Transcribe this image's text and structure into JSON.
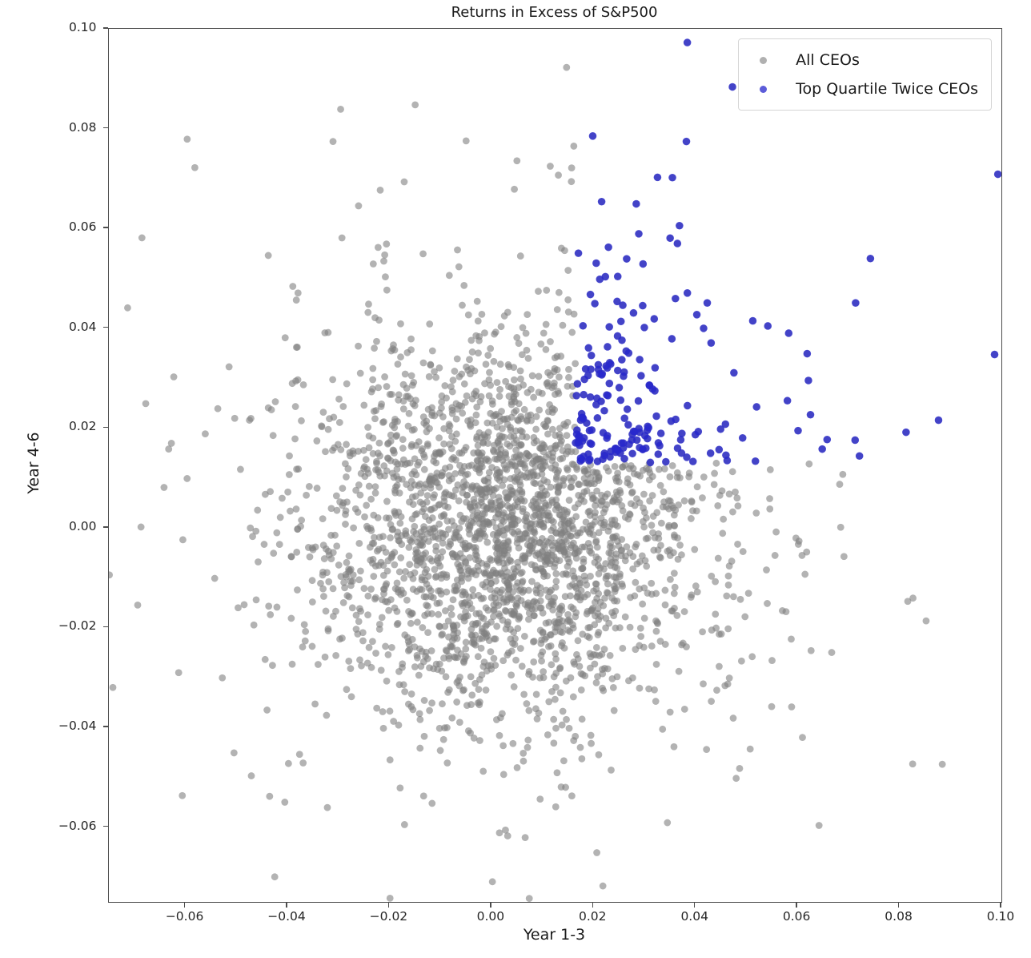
{
  "chart_data": {
    "type": "scatter",
    "title": "Returns in Excess of S&P500",
    "xlabel": "Year 1-3",
    "ylabel": "Year 4-6",
    "xlim": [
      -0.075,
      0.1
    ],
    "ylim": [
      -0.075,
      0.1
    ],
    "grid": false,
    "legend_position": "upper right",
    "xticks": {
      "values": [
        -0.06,
        -0.04,
        -0.02,
        0.0,
        0.02,
        0.04,
        0.06,
        0.08,
        0.1
      ],
      "labels": [
        "−0.06",
        "−0.04",
        "−0.02",
        "0.00",
        "0.02",
        "0.04",
        "0.06",
        "0.08",
        "0.10"
      ]
    },
    "yticks": {
      "values": [
        0.1,
        0.08,
        0.06,
        0.04,
        0.02,
        0.0,
        -0.02,
        -0.04,
        -0.06
      ],
      "labels": [
        "0.10",
        "0.08",
        "0.06",
        "0.04",
        "0.02",
        "0.00",
        "−0.02",
        "−0.04",
        "−0.06"
      ]
    },
    "series": [
      {
        "name": "All CEOs",
        "marker": "circle",
        "color": "#808080",
        "opacity": 0.6,
        "marker_radius_px": 4.4,
        "legend_marker_color": "#b0b0b0",
        "approx_count": 2800,
        "x_range_observed": [
          -0.074,
          0.096
        ],
        "y_range_observed": [
          -0.071,
          0.093
        ],
        "distribution": {
          "kind": "bivariate-normal-mixture",
          "seed": 11,
          "mean": [
            0.004,
            0.0008
          ],
          "core": {
            "weight": 0.88,
            "std": [
              0.0185,
              0.0185
            ]
          },
          "halo": {
            "weight": 0.12,
            "std": [
              0.038,
              0.038
            ]
          }
        }
      },
      {
        "name": "Top Quartile Twice CEOs",
        "marker": "circle",
        "color": "#2828cd",
        "opacity": 0.8,
        "marker_radius_px": 4.8,
        "legend_marker_color": "#5c5cd9",
        "definition": "subset of All CEOs whose return is in the top quartile in both Year 1-3 and Year 4-6",
        "selection_cutoffs": {
          "x_min": 0.0165,
          "y_min": 0.013
        },
        "approx_count": 170,
        "x_range_observed": [
          0.0165,
          0.092
        ],
        "y_range_observed": [
          0.013,
          0.077
        ]
      }
    ]
  }
}
